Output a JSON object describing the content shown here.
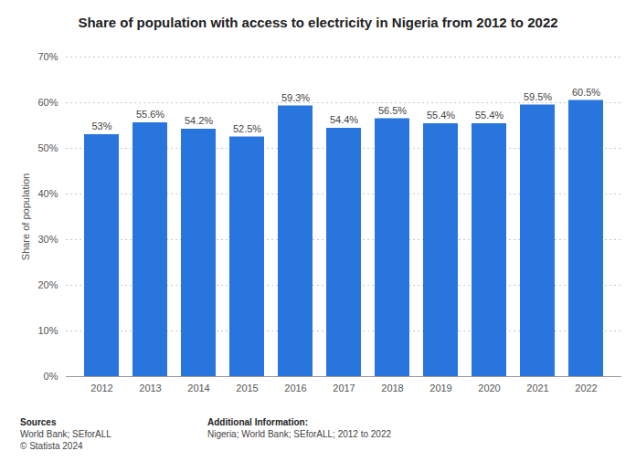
{
  "chart_data": {
    "type": "bar",
    "title": "Share of population with access to electricity in Nigeria from 2012 to 2022",
    "y_label": "Share of population",
    "categories": [
      "2012",
      "2013",
      "2014",
      "2015",
      "2016",
      "2017",
      "2018",
      "2019",
      "2020",
      "2021",
      "2022"
    ],
    "values": [
      53,
      55.6,
      54.2,
      52.5,
      59.3,
      54.4,
      56.5,
      55.4,
      55.4,
      59.5,
      60.5
    ],
    "value_labels": [
      "53%",
      "55.6%",
      "54.2%",
      "52.5%",
      "59.3%",
      "54.4%",
      "56.5%",
      "55.4%",
      "55.4%",
      "59.5%",
      "60.5%"
    ],
    "color": "#2876dd",
    "ylim": [
      0,
      70
    ],
    "yticks": [
      {
        "value": 0,
        "label": "0%"
      },
      {
        "value": 10,
        "label": "10%"
      },
      {
        "value": 20,
        "label": "20%"
      },
      {
        "value": 30,
        "label": "30%"
      },
      {
        "value": 40,
        "label": "40%"
      },
      {
        "value": 50,
        "label": "50%"
      },
      {
        "value": 60,
        "label": "60%"
      },
      {
        "value": 70,
        "label": "70%"
      }
    ],
    "grid": true,
    "data_labels": true,
    "footer": {
      "sources_heading": "Sources",
      "sources": [
        "World Bank; SEforALL",
        "© Statista 2024"
      ],
      "additional_heading": "Additional Information:",
      "additional": [
        "Nigeria; World Bank; SEforALL; 2012 to 2022"
      ]
    }
  }
}
